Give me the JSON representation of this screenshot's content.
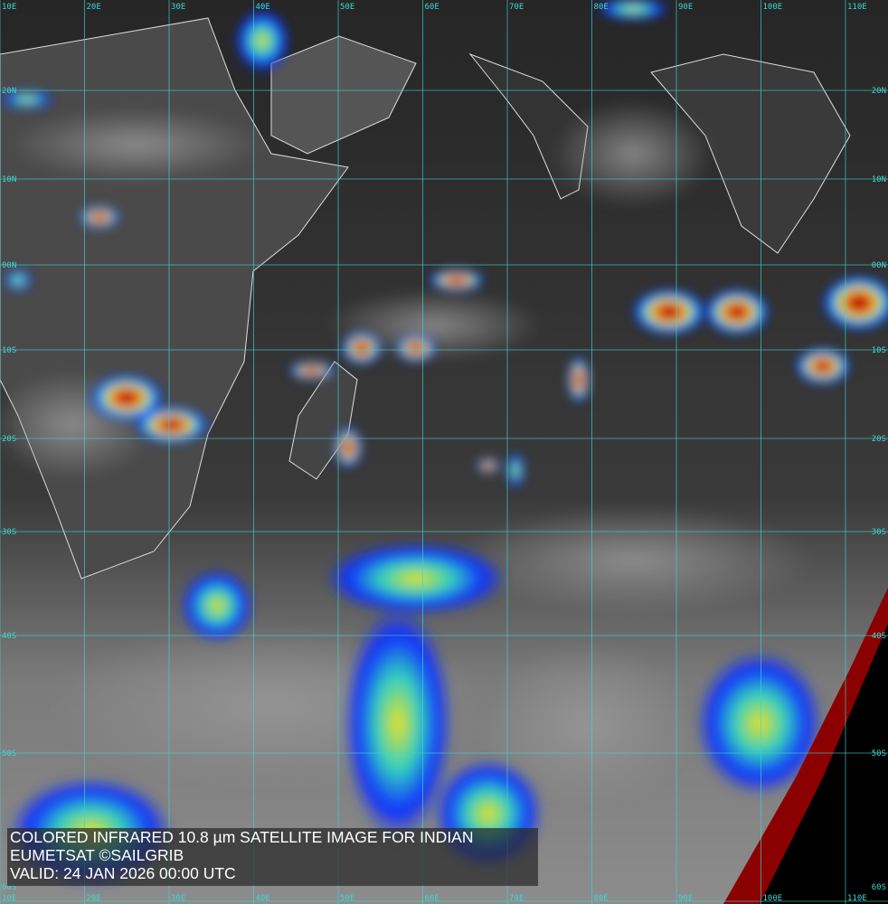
{
  "caption": {
    "title": "COLORED INFRARED 10.8 µm SATELLITE IMAGE FOR INDIAN",
    "source": "EUMETSAT ©SAILGRIB",
    "valid": "VALID:  24 JAN 2026 00:00 UTC"
  },
  "grid": {
    "longitudes": [
      "10E",
      "20E",
      "30E",
      "40E",
      "50E",
      "60E",
      "70E",
      "80E",
      "90E",
      "100E",
      "110E"
    ],
    "latitudes": [
      "20N",
      "10N",
      "00N",
      "10S",
      "20S",
      "30S",
      "40S",
      "50S",
      "60S"
    ]
  },
  "colors": {
    "grid": "#3fd6d0",
    "coast": "#ffffff",
    "cold_top_red": "#d40000",
    "cold_top_yellow": "#f2e600",
    "cloud_blue": "#1030ff",
    "terminator": "#8b0000"
  }
}
